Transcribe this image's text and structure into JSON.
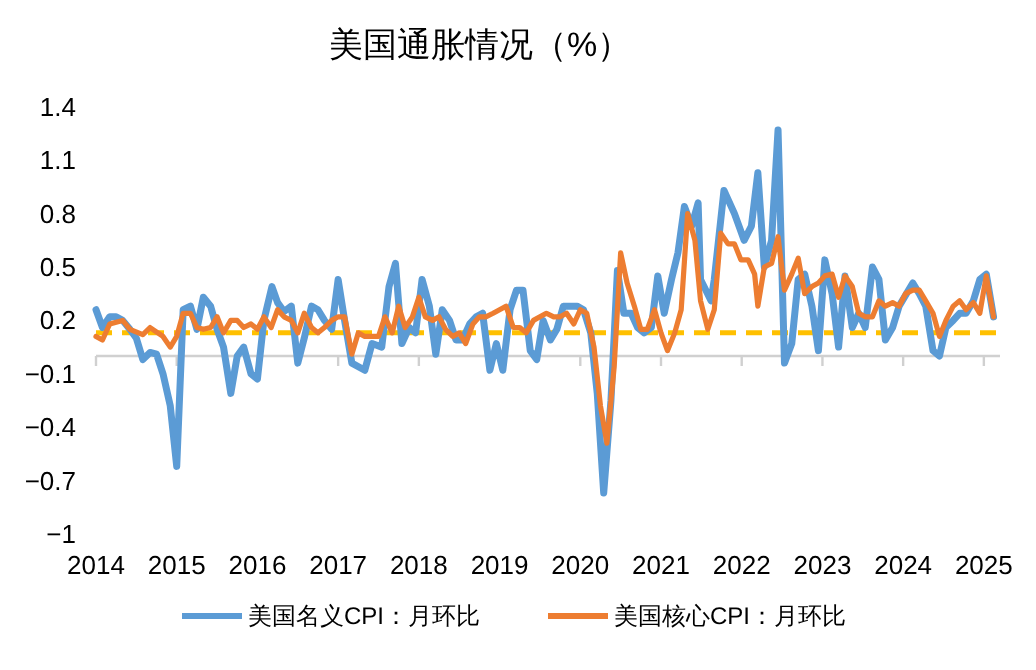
{
  "chart_data": {
    "type": "line",
    "title": "美国通胀情况（%）",
    "xlim": [
      2014,
      2025.2
    ],
    "xticks": [
      2014,
      2015,
      2016,
      2017,
      2018,
      2019,
      2020,
      2021,
      2022,
      2023,
      2024,
      2025
    ],
    "ylim": [
      -1,
      1.4
    ],
    "yticks": [
      -1,
      -0.7,
      -0.4,
      -0.1,
      0.2,
      0.5,
      0.8,
      1.1,
      1.4
    ],
    "grid": false,
    "legend": "bottom",
    "line_style": "solid",
    "marker": "none",
    "ref_lines": [
      {
        "axis": "y",
        "value": 0.13,
        "color": "#ffc000",
        "line_style": "dashed"
      }
    ],
    "series": [
      {
        "name": "美国名义CPI：月环比",
        "color": "#5b9bd5",
        "x": [
          2014.0,
          2014.08,
          2014.17,
          2014.25,
          2014.33,
          2014.42,
          2014.5,
          2014.58,
          2014.67,
          2014.75,
          2014.83,
          2014.92,
          2015.0,
          2015.08,
          2015.17,
          2015.25,
          2015.33,
          2015.42,
          2015.5,
          2015.58,
          2015.67,
          2015.75,
          2015.83,
          2015.92,
          2016.0,
          2016.08,
          2016.18,
          2016.25,
          2016.33,
          2016.42,
          2016.5,
          2016.58,
          2016.67,
          2016.75,
          2016.83,
          2016.92,
          2017.0,
          2017.08,
          2017.17,
          2017.33,
          2017.42,
          2017.54,
          2017.63,
          2017.71,
          2017.79,
          2017.88,
          2017.96,
          2018.04,
          2018.13,
          2018.21,
          2018.29,
          2018.38,
          2018.46,
          2018.54,
          2018.63,
          2018.71,
          2018.79,
          2018.88,
          2018.96,
          2019.04,
          2019.13,
          2019.21,
          2019.29,
          2019.38,
          2019.46,
          2019.54,
          2019.63,
          2019.71,
          2019.79,
          2019.88,
          2019.96,
          2020.04,
          2020.13,
          2020.21,
          2020.29,
          2020.38,
          2020.46,
          2020.54,
          2020.63,
          2020.71,
          2020.79,
          2020.88,
          2020.96,
          2021.04,
          2021.13,
          2021.21,
          2021.29,
          2021.38,
          2021.46,
          2021.49,
          2021.62,
          2021.66,
          2021.78,
          2021.91,
          2022.03,
          2022.12,
          2022.2,
          2022.28,
          2022.37,
          2022.45,
          2022.53,
          2022.62,
          2022.7,
          2022.78,
          2022.87,
          2022.95,
          2023.03,
          2023.12,
          2023.2,
          2023.28,
          2023.37,
          2023.45,
          2023.53,
          2023.62,
          2023.7,
          2023.78,
          2023.87,
          2023.95,
          2024.12,
          2024.2,
          2024.28,
          2024.37,
          2024.45,
          2024.53,
          2024.62,
          2024.7,
          2024.78,
          2024.87,
          2024.95,
          2025.03,
          2025.12
        ],
        "values": [
          0.26,
          0.16,
          0.22,
          0.22,
          0.2,
          0.15,
          0.1,
          -0.02,
          0.02,
          0.01,
          -0.1,
          -0.28,
          -0.62,
          0.26,
          0.28,
          0.15,
          0.33,
          0.28,
          0.15,
          0.05,
          -0.21,
          0.0,
          0.05,
          -0.1,
          -0.13,
          0.2,
          0.39,
          0.3,
          0.25,
          0.28,
          -0.04,
          0.1,
          0.28,
          0.26,
          0.2,
          0.15,
          0.43,
          0.2,
          -0.04,
          -0.08,
          0.07,
          0.05,
          0.39,
          0.52,
          0.07,
          0.16,
          0.13,
          0.43,
          0.28,
          0.01,
          0.26,
          0.2,
          0.09,
          0.09,
          0.18,
          0.22,
          0.24,
          -0.08,
          0.07,
          -0.08,
          0.26,
          0.37,
          0.37,
          0.03,
          -0.02,
          0.2,
          0.09,
          0.15,
          0.28,
          0.28,
          0.28,
          0.26,
          0.13,
          -0.21,
          -0.77,
          -0.25,
          0.48,
          0.24,
          0.24,
          0.16,
          0.13,
          0.16,
          0.45,
          0.24,
          0.43,
          0.58,
          0.84,
          0.73,
          0.86,
          0.43,
          0.31,
          0.43,
          0.93,
          0.8,
          0.65,
          0.73,
          1.03,
          0.5,
          0.65,
          1.27,
          -0.04,
          0.07,
          0.43,
          0.46,
          0.28,
          0.03,
          0.54,
          0.35,
          0.05,
          0.45,
          0.16,
          0.24,
          0.16,
          0.5,
          0.43,
          0.09,
          0.16,
          0.28,
          0.41,
          0.35,
          0.28,
          0.03,
          0.0,
          0.16,
          0.2,
          0.24,
          0.24,
          0.31,
          0.43,
          0.46,
          0.22
        ]
      },
      {
        "name": "美国核心CPI：月环比",
        "color": "#ed7d31",
        "x": [
          2014.0,
          2014.08,
          2014.17,
          2014.33,
          2014.42,
          2014.58,
          2014.67,
          2014.83,
          2014.92,
          2015.0,
          2015.08,
          2015.17,
          2015.25,
          2015.33,
          2015.42,
          2015.5,
          2015.58,
          2015.67,
          2015.75,
          2015.83,
          2015.92,
          2016.0,
          2016.08,
          2016.17,
          2016.25,
          2016.33,
          2016.42,
          2016.5,
          2016.58,
          2016.67,
          2016.75,
          2016.83,
          2016.92,
          2017.0,
          2017.08,
          2017.17,
          2017.25,
          2017.33,
          2017.5,
          2017.58,
          2017.67,
          2017.75,
          2017.83,
          2017.92,
          2018.0,
          2018.08,
          2018.17,
          2018.25,
          2018.33,
          2018.42,
          2018.5,
          2018.58,
          2018.67,
          2018.75,
          2018.83,
          2018.92,
          2019.0,
          2019.08,
          2019.17,
          2019.25,
          2019.33,
          2019.42,
          2019.5,
          2019.58,
          2019.67,
          2019.75,
          2019.83,
          2019.92,
          2020.0,
          2020.08,
          2020.17,
          2020.25,
          2020.33,
          2020.42,
          2020.5,
          2020.58,
          2020.67,
          2020.75,
          2020.83,
          2020.92,
          2021.0,
          2021.08,
          2021.17,
          2021.25,
          2021.33,
          2021.42,
          2021.49,
          2021.58,
          2021.66,
          2021.74,
          2021.83,
          2021.91,
          2021.99,
          2022.08,
          2022.16,
          2022.2,
          2022.28,
          2022.37,
          2022.45,
          2022.53,
          2022.62,
          2022.7,
          2022.78,
          2022.87,
          2022.95,
          2023.03,
          2023.12,
          2023.2,
          2023.28,
          2023.37,
          2023.45,
          2023.53,
          2023.62,
          2023.7,
          2023.78,
          2023.87,
          2023.95,
          2024.03,
          2024.12,
          2024.2,
          2024.28,
          2024.37,
          2024.45,
          2024.53,
          2024.62,
          2024.7,
          2024.78,
          2024.87,
          2024.95,
          2025.03,
          2025.12
        ],
        "values": [
          0.11,
          0.09,
          0.18,
          0.2,
          0.15,
          0.12,
          0.16,
          0.11,
          0.05,
          0.11,
          0.24,
          0.24,
          0.16,
          0.15,
          0.16,
          0.22,
          0.13,
          0.2,
          0.2,
          0.16,
          0.18,
          0.15,
          0.22,
          0.16,
          0.26,
          0.22,
          0.2,
          0.13,
          0.24,
          0.16,
          0.13,
          0.16,
          0.2,
          0.22,
          0.22,
          0.01,
          0.13,
          0.11,
          0.11,
          0.22,
          0.13,
          0.28,
          0.16,
          0.22,
          0.33,
          0.22,
          0.2,
          0.22,
          0.15,
          0.11,
          0.13,
          0.07,
          0.18,
          0.22,
          0.22,
          0.24,
          0.26,
          0.28,
          0.16,
          0.16,
          0.13,
          0.2,
          0.22,
          0.24,
          0.22,
          0.22,
          0.24,
          0.18,
          0.26,
          0.24,
          0.05,
          -0.28,
          -0.49,
          -0.06,
          0.58,
          0.41,
          0.28,
          0.15,
          0.15,
          0.26,
          0.13,
          0.03,
          0.13,
          0.26,
          0.8,
          0.65,
          0.31,
          0.15,
          0.26,
          0.69,
          0.63,
          0.63,
          0.54,
          0.54,
          0.46,
          0.28,
          0.5,
          0.52,
          0.67,
          0.37,
          0.46,
          0.55,
          0.35,
          0.39,
          0.41,
          0.45,
          0.46,
          0.33,
          0.45,
          0.39,
          0.24,
          0.22,
          0.22,
          0.31,
          0.28,
          0.3,
          0.28,
          0.35,
          0.37,
          0.37,
          0.31,
          0.24,
          0.11,
          0.2,
          0.28,
          0.31,
          0.26,
          0.3,
          0.24,
          0.45,
          0.22
        ]
      }
    ]
  }
}
